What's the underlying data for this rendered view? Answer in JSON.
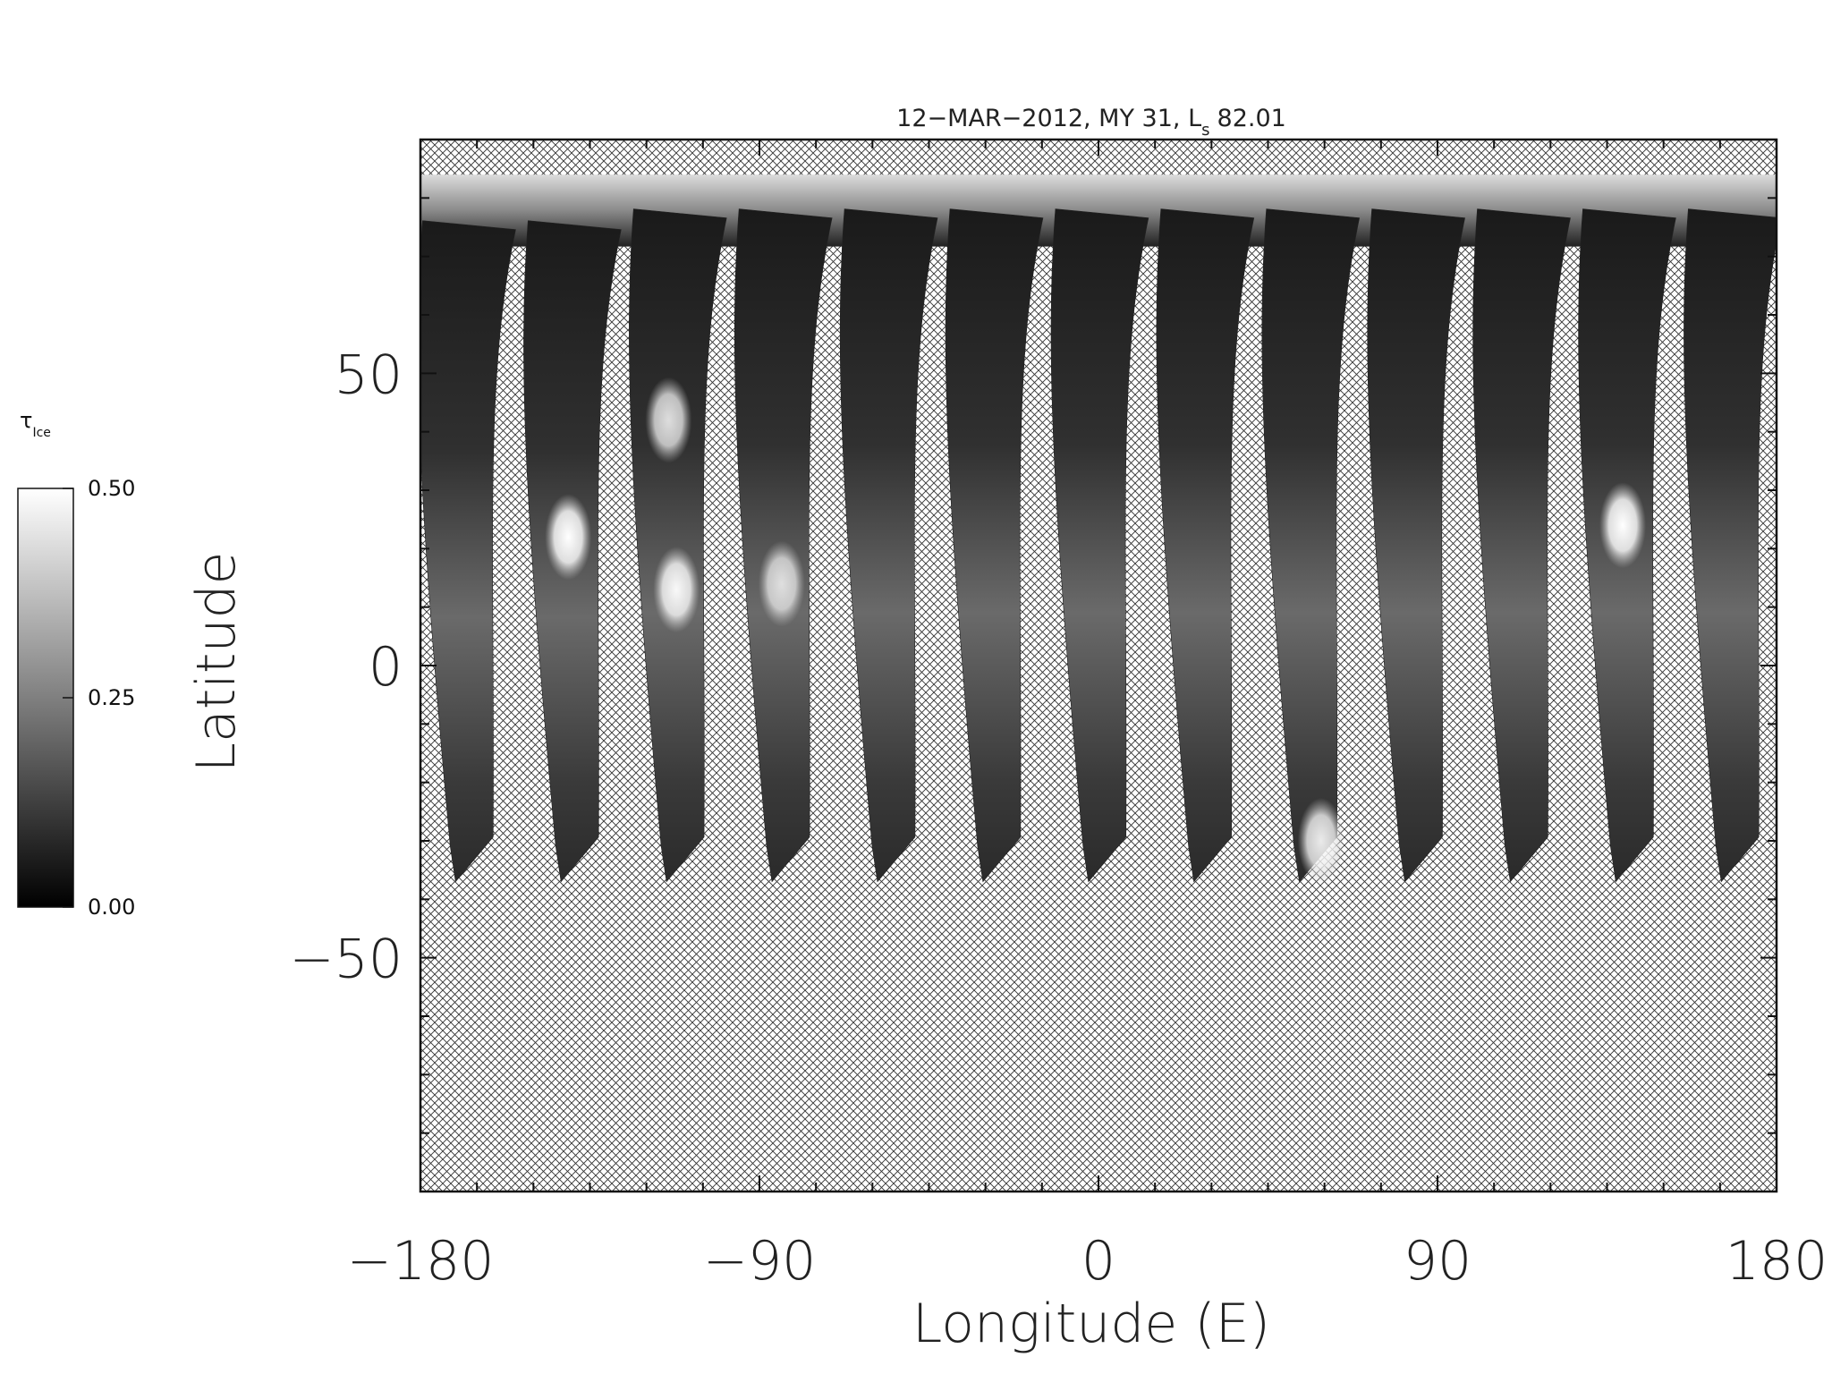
{
  "chart_data": {
    "type": "heatmap",
    "title": {
      "prefix": "12−MAR−2012,  MY 31,  ",
      "ls_main": "L",
      "ls_sub": "s",
      "ls_value": "82.01"
    },
    "xlabel": "Longitude (E)",
    "ylabel": "Latitude",
    "xlim": [
      -180,
      180
    ],
    "ylim": [
      -90,
      90
    ],
    "x_ticks": [
      {
        "value": -180,
        "label": "−180"
      },
      {
        "value": -90,
        "label": "−90"
      },
      {
        "value": 0,
        "label": "0"
      },
      {
        "value": 90,
        "label": "90"
      },
      {
        "value": 180,
        "label": "180"
      }
    ],
    "y_ticks": [
      {
        "value": 50,
        "label": "50"
      },
      {
        "value": 0,
        "label": "0"
      },
      {
        "value": -50,
        "label": "−50"
      }
    ],
    "colorbar": {
      "label_main": "τ",
      "label_sub": "Ice",
      "min": 0.0,
      "max": 0.5,
      "ticks": [
        {
          "value": 0.5,
          "label": "0.50"
        },
        {
          "value": 0.25,
          "label": "0.25"
        },
        {
          "value": 0.0,
          "label": "0.00"
        }
      ],
      "colormap": "grayscale"
    },
    "missing_data_pattern": "cross-hatch",
    "swaths": [
      {
        "lon_south": -174,
        "lon_north": -178,
        "lat_north": 70,
        "lat_south": -37,
        "bright_spots": []
      },
      {
        "lon_south": -146,
        "lon_north": -150,
        "lat_north": 70,
        "lat_south": -37,
        "bright_spots": [
          {
            "lat": 22,
            "tau": 0.5
          }
        ]
      },
      {
        "lon_south": -118,
        "lon_north": -122,
        "lat_north": 72,
        "lat_south": -37,
        "bright_spots": [
          {
            "lat": 42,
            "tau": 0.42
          },
          {
            "lat": 13,
            "tau": 0.48
          }
        ]
      },
      {
        "lon_south": -90,
        "lon_north": -94,
        "lat_north": 72,
        "lat_south": -37,
        "bright_spots": [
          {
            "lat": 14,
            "tau": 0.4
          }
        ]
      },
      {
        "lon_south": -62,
        "lon_north": -66,
        "lat_north": 72,
        "lat_south": -37,
        "bright_spots": []
      },
      {
        "lon_south": -34,
        "lon_north": -38,
        "lat_north": 72,
        "lat_south": -37,
        "bright_spots": []
      },
      {
        "lon_south": -6,
        "lon_north": -10,
        "lat_north": 72,
        "lat_south": -37,
        "bright_spots": []
      },
      {
        "lon_south": 22,
        "lon_north": 18,
        "lat_north": 72,
        "lat_south": -37,
        "bright_spots": []
      },
      {
        "lon_south": 50,
        "lon_north": 46,
        "lat_north": 72,
        "lat_south": -37,
        "bright_spots": [
          {
            "lat": -30,
            "tau": 0.45
          }
        ]
      },
      {
        "lon_south": 78,
        "lon_north": 74,
        "lat_north": 72,
        "lat_south": -37,
        "bright_spots": []
      },
      {
        "lon_south": 106,
        "lon_north": 102,
        "lat_north": 72,
        "lat_south": -37,
        "bright_spots": []
      },
      {
        "lon_south": 134,
        "lon_north": 130,
        "lat_north": 72,
        "lat_south": -37,
        "bright_spots": [
          {
            "lat": 24,
            "tau": 0.5
          }
        ]
      },
      {
        "lon_south": 162,
        "lon_north": 158,
        "lat_north": 72,
        "lat_south": -37,
        "bright_spots": []
      }
    ],
    "north_polar_band": {
      "lat_top": 84,
      "lat_bottom": 72
    }
  }
}
